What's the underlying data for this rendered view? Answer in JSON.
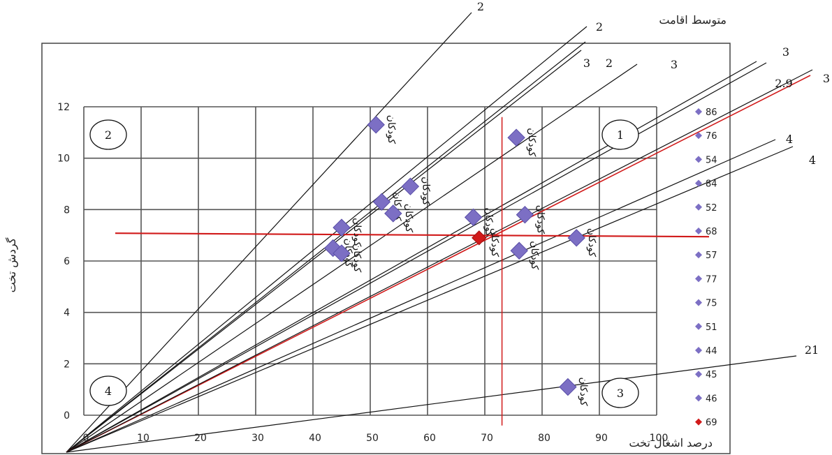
{
  "chart_data": {
    "type": "scatter",
    "title": "متوسط اقامت",
    "xlabel": "درصد اشغال تخت",
    "ylabel": "گردش تخت",
    "xlim": [
      0,
      100
    ],
    "ylim": [
      0,
      12
    ],
    "x_ticks": [
      "0",
      "10",
      "20",
      "30",
      "40",
      "50",
      "60",
      "70",
      "80",
      "90",
      "100"
    ],
    "y_ticks": [
      "0",
      "2",
      "4",
      "6",
      "8",
      "10",
      "12"
    ],
    "grid": true,
    "reference_lines": {
      "x": 73,
      "y": 7
    },
    "quadrants": [
      "1",
      "2",
      "3",
      "4"
    ],
    "points": [
      {
        "x": 51,
        "y": 11.3,
        "label": "ﻛﻮدﻛﺎن",
        "legend": "86",
        "color": "#7c6fc4"
      },
      {
        "x": 75.5,
        "y": 10.8,
        "label": "ﻛﻮدﻛﺎن",
        "legend": "76",
        "color": "#7c6fc4"
      },
      {
        "x": 57,
        "y": 8.9,
        "label": "ﻛﻮدﻛﺎن",
        "legend": "54",
        "color": "#7c6fc4"
      },
      {
        "x": 52,
        "y": 8.3,
        "label": "ﻛﻮدﻛﺎن",
        "legend": "84",
        "color": "#7c6fc4"
      },
      {
        "x": 54,
        "y": 7.85,
        "label": "ﻛﻮدﻛﺎن",
        "legend": "52",
        "color": "#7c6fc4"
      },
      {
        "x": 77,
        "y": 7.8,
        "label": "ﻛﻮدﻛﺎن",
        "legend": "68",
        "color": "#7c6fc4"
      },
      {
        "x": 68,
        "y": 7.7,
        "label": "ﻛﻮدﻛﺎن",
        "legend": "57",
        "color": "#7c6fc4"
      },
      {
        "x": 45,
        "y": 7.3,
        "label": "ﻛﻮدﻛﺎن",
        "legend": "77",
        "color": "#7c6fc4"
      },
      {
        "x": 86,
        "y": 6.9,
        "label": "ﻛﻮدﻛﺎن",
        "legend": "75",
        "color": "#7c6fc4"
      },
      {
        "x": 43.5,
        "y": 6.5,
        "label": "ﻛﻮدﻛﺎن",
        "legend": "51",
        "color": "#7c6fc4"
      },
      {
        "x": 76,
        "y": 6.4,
        "label": "ﻛﻮدﻛﺎن",
        "legend": "44",
        "color": "#7c6fc4"
      },
      {
        "x": 45,
        "y": 6.3,
        "label": "ﻛﻮدﻛﺎن",
        "legend": "45",
        "color": "#7c6fc4"
      },
      {
        "x": 84.5,
        "y": 1.1,
        "label": "ﻛﻮدﻛﺎن",
        "legend": "46",
        "color": "#7c6fc4"
      },
      {
        "x": 69,
        "y": 6.9,
        "label": "ﻛﻮدﻛﺎن",
        "legend": "69",
        "color": "#d11a1a"
      }
    ],
    "rays": [
      {
        "label": "2",
        "slope": 0.2175,
        "color": "#111"
      },
      {
        "label": "2",
        "slope": 0.166,
        "color": "#111"
      },
      {
        "label": "2",
        "slope": 0.156,
        "color": "#111"
      },
      {
        "label": "3",
        "slope": 0.148,
        "color": "#111"
      },
      {
        "label": "2",
        "slope": 0.141,
        "color": "#111"
      },
      {
        "label": "3",
        "slope": 0.133,
        "color": "#111"
      },
      {
        "label": "3",
        "slope": 0.112,
        "color": "#111"
      },
      {
        "label": "2.9",
        "slope": 0.1,
        "color": "#d11a1a"
      },
      {
        "label": "3",
        "slope": 0.116,
        "color": "#111"
      },
      {
        "label": "4",
        "slope": 0.084,
        "color": "#111"
      },
      {
        "label": "4",
        "slope": 0.078,
        "color": "#111"
      },
      {
        "label": "21",
        "slope": 0.013,
        "color": "#111"
      }
    ],
    "legend_entries": [
      "86",
      "76",
      "54",
      "84",
      "52",
      "68",
      "57",
      "77",
      "75",
      "51",
      "44",
      "45",
      "46",
      "69"
    ]
  }
}
